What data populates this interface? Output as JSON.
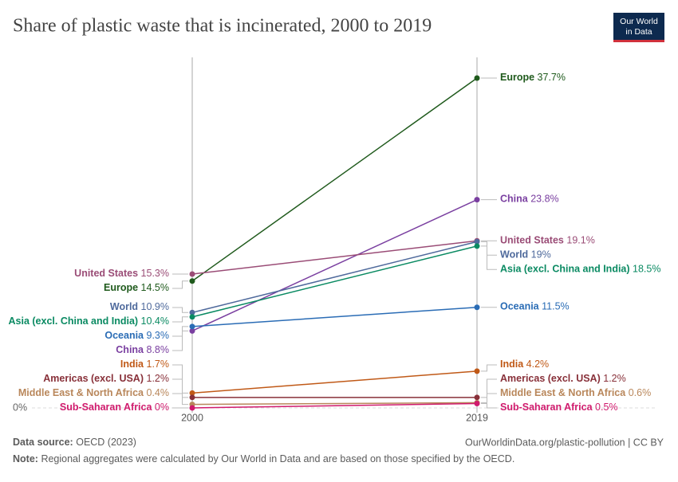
{
  "chart_data": {
    "type": "slope",
    "title": "Share of plastic waste that is incinerated, 2000 to 2019",
    "logo": [
      "Our World",
      "in Data"
    ],
    "x": [
      2000,
      2019
    ],
    "xlim": [
      2000,
      2019
    ],
    "xticks": [
      2000,
      2019
    ],
    "ylim": [
      0,
      37.7
    ],
    "yticks": [
      {
        "value": 0,
        "label": "0%"
      }
    ],
    "series": [
      {
        "name": "Europe",
        "color": "#1f5a1c",
        "values": [
          14.5,
          37.7
        ],
        "value_labels": [
          "14.5%",
          "37.7%"
        ]
      },
      {
        "name": "China",
        "color": "#7a3fa0",
        "values": [
          8.8,
          23.8
        ],
        "value_labels": [
          "8.8%",
          "23.8%"
        ]
      },
      {
        "name": "United States",
        "color": "#9a4c76",
        "values": [
          15.3,
          19.1
        ],
        "value_labels": [
          "15.3%",
          "19.1%"
        ]
      },
      {
        "name": "World",
        "color": "#4f6a9c",
        "values": [
          10.9,
          19
        ],
        "value_labels": [
          "10.9%",
          "19%"
        ]
      },
      {
        "name": "Asia (excl. China and India)",
        "color": "#0a8a62",
        "values": [
          10.4,
          18.5
        ],
        "value_labels": [
          "10.4%",
          "18.5%"
        ]
      },
      {
        "name": "Oceania",
        "color": "#2a6cb5",
        "values": [
          9.3,
          11.5
        ],
        "value_labels": [
          "9.3%",
          "11.5%"
        ]
      },
      {
        "name": "India",
        "color": "#c05917",
        "values": [
          1.7,
          4.2
        ],
        "value_labels": [
          "1.7%",
          "4.2%"
        ]
      },
      {
        "name": "Americas (excl. USA)",
        "color": "#883039",
        "values": [
          1.2,
          1.2
        ],
        "value_labels": [
          "1.2%",
          "1.2%"
        ]
      },
      {
        "name": "Middle East & North Africa",
        "color": "#b9875b",
        "values": [
          0.4,
          0.6
        ],
        "value_labels": [
          "0.4%",
          "0.6%"
        ]
      },
      {
        "name": "Sub-Saharan Africa",
        "color": "#d01b6d",
        "values": [
          0,
          0.5
        ],
        "value_labels": [
          "0%",
          "0.5%"
        ]
      }
    ],
    "source_label": "Data source:",
    "source": "OECD (2023)",
    "url": "OurWorldinData.org/plastic-pollution | CC BY",
    "note_label": "Note:",
    "note": "Regional aggregates were calculated by Our World in Data and are based on those specified by the OECD."
  }
}
